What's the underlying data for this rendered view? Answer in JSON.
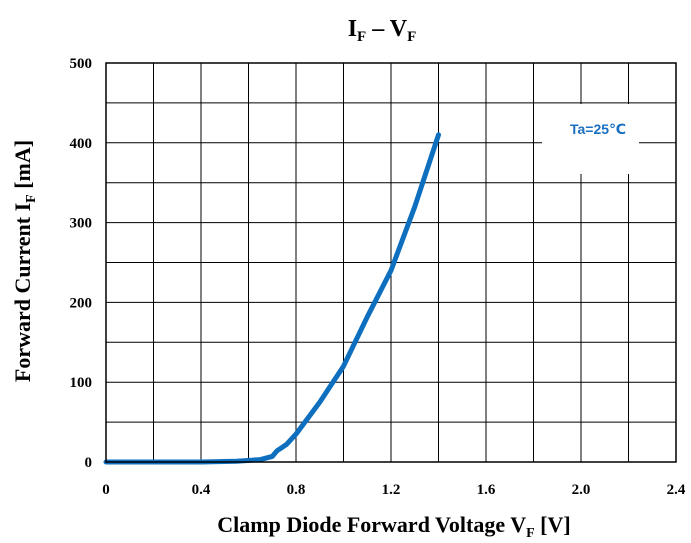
{
  "chart_data": {
    "type": "line",
    "title_main": "I",
    "title_sub1": "F",
    "title_dash": " – V",
    "title_sub2": "F",
    "xlabel_main": "Clamp Diode Forward Voltage V",
    "xlabel_sub": "F",
    "xlabel_tail": " [V]",
    "ylabel_main": "Forward Current I",
    "ylabel_sub": "F",
    "ylabel_tail": " [mA]",
    "annotation": "Ta=25℃",
    "xlim": [
      0,
      2.4
    ],
    "ylim": [
      0,
      500
    ],
    "x_ticks": [
      "0",
      "0.4",
      "0.8",
      "1.2",
      "1.6",
      "2.0",
      "2.4"
    ],
    "y_ticks": [
      "0",
      "100",
      "200",
      "300",
      "400",
      "500"
    ],
    "grid": true,
    "series": [
      {
        "x": [
          0,
          0.2,
          0.4,
          0.55,
          0.65,
          0.7,
          0.72,
          0.76,
          0.8,
          0.85,
          0.9,
          1.0,
          1.1,
          1.2,
          1.3,
          1.4
        ],
        "y": [
          0,
          0,
          0,
          1,
          3,
          7,
          14,
          22,
          35,
          55,
          75,
          120,
          182,
          240,
          320,
          410
        ]
      }
    ],
    "colors": {
      "line": "#0f6fbf",
      "annotation": "#1a6fc0",
      "grid": "#000000"
    }
  }
}
